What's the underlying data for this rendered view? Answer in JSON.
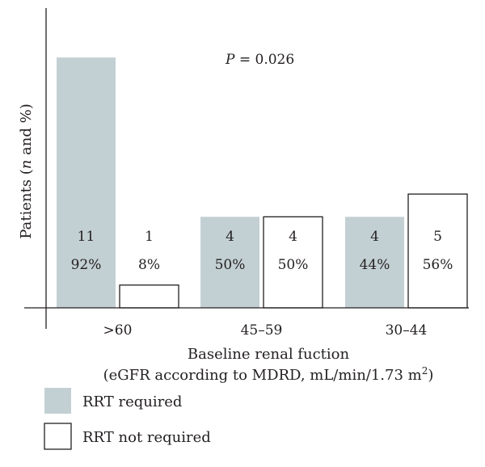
{
  "chart_data": {
    "type": "bar",
    "categories": [
      ">60",
      "45–59",
      "30–44"
    ],
    "series": [
      {
        "name": "RRT required",
        "values": [
          11,
          4,
          4
        ],
        "percent_labels": [
          "92%",
          "50%",
          "44%"
        ],
        "color": "#c3d0d3"
      },
      {
        "name": "RRT not required",
        "values": [
          1,
          4,
          5
        ],
        "percent_labels": [
          "8%",
          "50%",
          "56%"
        ],
        "color": "#ffffff"
      }
    ],
    "ylim": [
      0,
      12
    ],
    "annotation": {
      "prefix": "P",
      "rest": " = 0.026"
    },
    "ylabel": {
      "before": "Patients (",
      "italic": "n",
      "after": " and %)"
    },
    "xlabel_line1": "Baseline renal fuction",
    "xlabel_line2": {
      "main": "(eGFR according to MDRD, mL/min/1.73 m",
      "sup": "2",
      "end": ")"
    },
    "legend_placement": "bottom-left",
    "grid": false
  }
}
